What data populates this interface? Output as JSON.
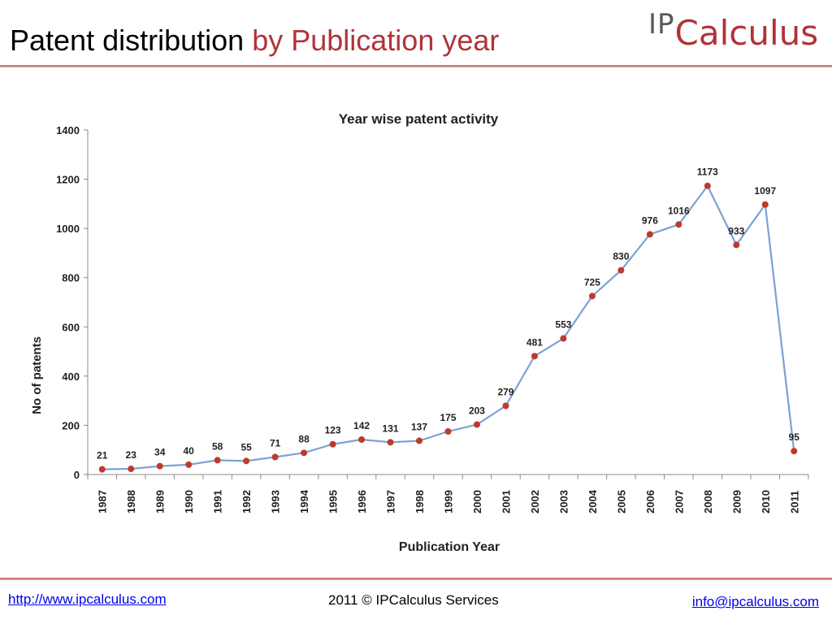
{
  "slide": {
    "title_main": "Patent distribution",
    "title_accent": "by Publication year",
    "logo_ip": "IP",
    "logo_rest": "Calculus"
  },
  "footer": {
    "link_left": "http://www.ipcalculus.com",
    "center_text": "2011 © IPCalculus Services",
    "link_right": "info@ipcalculus.com"
  },
  "colors": {
    "accent": "#b0333a",
    "line": "#7ba2d4",
    "marker": "#c0392b"
  },
  "chart_data": {
    "type": "line",
    "title": "Year wise patent activity",
    "xlabel": "Publication Year",
    "ylabel": "No of patents",
    "ylim": [
      0,
      1400
    ],
    "yticks": [
      0,
      200,
      400,
      600,
      800,
      1000,
      1200,
      1400
    ],
    "grid": false,
    "categories": [
      "1987",
      "1988",
      "1989",
      "1990",
      "1991",
      "1992",
      "1993",
      "1994",
      "1995",
      "1996",
      "1997",
      "1998",
      "1999",
      "2000",
      "2001",
      "2002",
      "2003",
      "2004",
      "2005",
      "2006",
      "2007",
      "2008",
      "2009",
      "2010",
      "2011"
    ],
    "values": [
      21,
      23,
      34,
      40,
      58,
      55,
      71,
      88,
      123,
      142,
      131,
      137,
      175,
      203,
      279,
      481,
      553,
      725,
      830,
      976,
      1016,
      1173,
      933,
      1097,
      95
    ],
    "data_labels": [
      "21",
      "23",
      "34",
      "40",
      "58",
      "55",
      "71",
      "88",
      "123",
      "142",
      "131",
      "137",
      "175",
      "203",
      "279",
      "481",
      "553",
      "725",
      "830",
      "976",
      "1016",
      "1173",
      "933",
      "1097",
      "95"
    ]
  }
}
